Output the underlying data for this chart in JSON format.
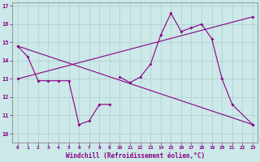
{
  "xlabel": "Windchill (Refroidissement éolien,°C)",
  "background_color": "#cce8e8",
  "line_color": "#880088",
  "xlim": [
    -0.5,
    23.5
  ],
  "ylim": [
    9.5,
    17.2
  ],
  "xticks": [
    0,
    1,
    2,
    3,
    4,
    5,
    6,
    7,
    8,
    9,
    10,
    11,
    12,
    13,
    14,
    15,
    16,
    17,
    18,
    19,
    20,
    21,
    22,
    23
  ],
  "yticks": [
    10,
    11,
    12,
    13,
    14,
    15,
    16,
    17
  ],
  "grid_color": "#aacfcf",
  "series": [
    {
      "x": [
        0,
        1,
        2,
        3,
        4,
        5,
        6,
        7,
        8,
        9
      ],
      "y": [
        14.8,
        14.2,
        12.9,
        12.9,
        12.9,
        12.9,
        10.5,
        10.7,
        11.6,
        11.6
      ]
    },
    {
      "x": [
        10,
        11,
        12,
        13,
        14,
        15,
        16,
        17,
        18,
        19,
        20,
        21,
        23
      ],
      "y": [
        13.1,
        12.8,
        13.1,
        13.8,
        15.4,
        16.6,
        15.6,
        15.8,
        16.0,
        15.2,
        13.0,
        11.6,
        10.5
      ]
    },
    {
      "x": [
        0,
        23
      ],
      "y": [
        14.8,
        10.5
      ]
    },
    {
      "x": [
        0,
        23
      ],
      "y": [
        13.0,
        16.4
      ]
    }
  ]
}
